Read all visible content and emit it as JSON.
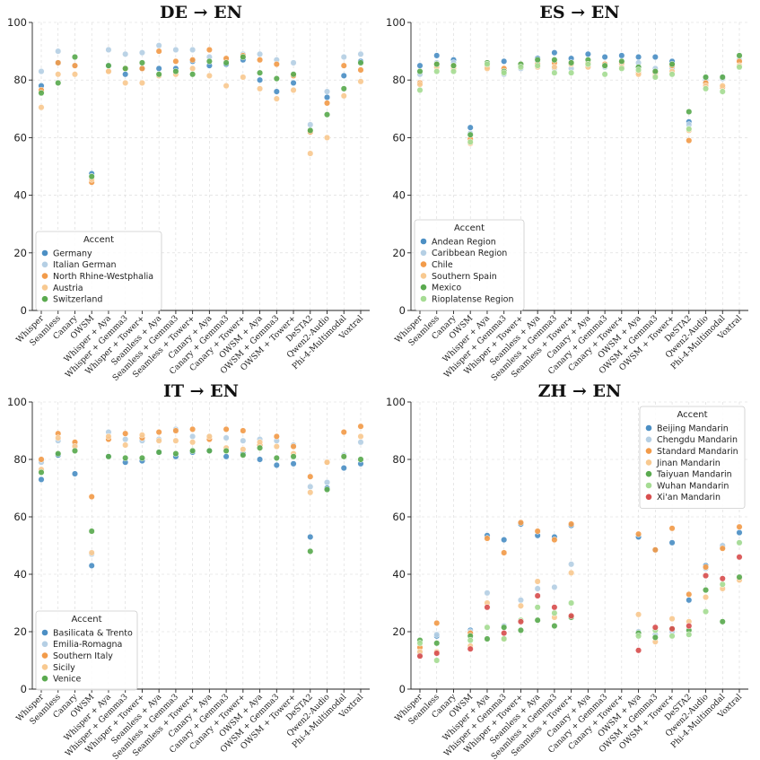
{
  "colors": {
    "c0": "#4c8fc4",
    "c1": "#b5cfe4",
    "c2": "#f29b4a",
    "c3": "#f8c990",
    "c4": "#5aaa4f",
    "c5": "#a6dc94",
    "c6": "#d84f4f"
  },
  "chart_data": [
    {
      "type": "scatter",
      "title": "DE → EN",
      "xlabel": "",
      "ylabel": "",
      "ylim": [
        0,
        100
      ],
      "yticks": [
        "0",
        "20",
        "40",
        "60",
        "80",
        "100"
      ],
      "grid": true,
      "categories": [
        "Whisper",
        "Seamless",
        "Canary",
        "OWSM",
        "Whisper + Aya",
        "Whisper + Gemma3",
        "Whisper + Tower+",
        "Seamless + Aya",
        "Seamless + Gemma3",
        "Seamless + Tower+",
        "Canary + Aya",
        "Canary + Gemma3",
        "Canary + Tower+",
        "OWSM + Aya",
        "OWSM + Gemma3",
        "OWSM + Tower+",
        "DeSTA2",
        "Qwen2-Audio",
        "Phi-4-Multimodal",
        "Voxtral"
      ],
      "legend_title": "Accent",
      "legend_position": "lower-left",
      "series": [
        {
          "name": "Germany",
          "color_key": "c0",
          "values": [
            78,
            86,
            85,
            47.5,
            85,
            82,
            84,
            84,
            84,
            86.5,
            85,
            85.5,
            87,
            80,
            76,
            79,
            62.5,
            74,
            81.5,
            86.5
          ]
        },
        {
          "name": "Italian German",
          "color_key": "c1",
          "values": [
            83,
            90,
            85,
            46.5,
            90.5,
            89,
            89.5,
            92,
            90.5,
            90.5,
            88,
            87,
            89,
            89,
            87,
            86,
            64.5,
            76,
            88,
            89
          ]
        },
        {
          "name": "North Rhine-Westphalia",
          "color_key": "c2",
          "values": [
            76.5,
            86,
            85,
            44.5,
            83,
            84,
            84,
            90,
            86.5,
            87,
            90.5,
            87.5,
            88.5,
            87,
            85.5,
            81.5,
            62,
            72,
            85,
            83.5
          ]
        },
        {
          "name": "Austria",
          "color_key": "c3",
          "values": [
            70.5,
            82,
            82,
            45.5,
            83,
            79,
            79,
            81.5,
            82,
            84,
            81.5,
            78,
            81,
            77,
            73.5,
            76.5,
            54.5,
            60,
            74.5,
            79.5
          ]
        },
        {
          "name": "Switzerland",
          "color_key": "c4",
          "values": [
            75.5,
            79,
            88,
            46.5,
            85,
            84,
            86,
            82,
            83,
            82,
            86.5,
            86,
            88,
            82.5,
            80.5,
            82,
            62.5,
            68,
            77,
            86
          ]
        }
      ]
    },
    {
      "type": "scatter",
      "title": "ES → EN",
      "xlabel": "",
      "ylabel": "",
      "ylim": [
        0,
        100
      ],
      "yticks": [
        "0",
        "20",
        "40",
        "60",
        "80",
        "100"
      ],
      "grid": true,
      "categories": [
        "Whisper",
        "Seamless",
        "Canary",
        "OWSM",
        "Whisper + Aya",
        "Whisper + Gemma3",
        "Whisper + Tower+",
        "Seamless + Aya",
        "Seamless + Gemma3",
        "Seamless + Tower+",
        "Canary + Aya",
        "Canary + Gemma3",
        "Canary + Tower+",
        "OWSM + Aya",
        "OWSM + Gemma3",
        "OWSM + Tower+",
        "DeSTA2",
        "Qwen2-Audio",
        "Phi-4-Multimodal",
        "Voxtral"
      ],
      "legend_title": "Accent",
      "legend_position": "lower-left",
      "series": [
        {
          "name": "Andean Region",
          "color_key": "c0",
          "values": [
            85,
            88.5,
            87,
            63.5,
            85.5,
            86.5,
            85.5,
            87.5,
            89.5,
            87.5,
            89,
            88,
            88.5,
            88,
            88,
            86.5,
            65.5,
            80.5,
            81,
            87
          ]
        },
        {
          "name": "Caribbean Region",
          "color_key": "c1",
          "values": [
            82,
            86,
            86,
            61.5,
            85.5,
            82,
            84,
            86.5,
            84,
            84,
            85,
            84.5,
            86,
            86,
            84,
            84,
            64.5,
            80,
            80.5,
            87
          ]
        },
        {
          "name": "Chile",
          "color_key": "c2",
          "values": [
            79,
            85.5,
            85,
            59.5,
            84.5,
            84,
            85.5,
            85.5,
            86,
            86,
            86,
            85.5,
            86,
            82.5,
            82.5,
            85,
            59,
            79,
            77.5,
            86.5
          ]
        },
        {
          "name": "Southern Spain",
          "color_key": "c3",
          "values": [
            78.5,
            84.5,
            84,
            58,
            84,
            83,
            85,
            84.5,
            84.5,
            85.5,
            84.5,
            85,
            84.5,
            82,
            81.5,
            83,
            62.5,
            78,
            78,
            85
          ]
        },
        {
          "name": "Mexico",
          "color_key": "c4",
          "values": [
            83,
            85.5,
            85,
            61,
            86,
            83,
            85.5,
            87,
            87,
            86,
            87,
            85,
            86.5,
            84.5,
            83,
            85.5,
            69,
            81,
            81,
            88.5
          ]
        },
        {
          "name": "Rioplatense Region",
          "color_key": "c5",
          "values": [
            76.5,
            83,
            83,
            58.5,
            85.5,
            82.5,
            84.5,
            85,
            82.5,
            82.5,
            85.5,
            82,
            84,
            83.5,
            81,
            82,
            63,
            77,
            76,
            84.5
          ]
        }
      ]
    },
    {
      "type": "scatter",
      "title": "IT → EN",
      "xlabel": "",
      "ylabel": "",
      "ylim": [
        0,
        100
      ],
      "yticks": [
        "0",
        "20",
        "40",
        "60",
        "80",
        "100"
      ],
      "grid": true,
      "categories": [
        "Whisper",
        "Seamless",
        "Canary",
        "OWSM",
        "Whisper + Aya",
        "Whisper + Gemma3",
        "Whisper + Tower+",
        "Seamless + Aya",
        "Seamless + Gemma3",
        "Seamless + Tower+",
        "Canary + Aya",
        "Canary + Gemma3",
        "Canary + Tower+",
        "OWSM + Aya",
        "OWSM + Gemma3",
        "OWSM + Tower+",
        "DeSTA2",
        "Qwen2-Audio",
        "Phi-4-Multimodal",
        "Voxtral"
      ],
      "legend_title": "Accent",
      "legend_position": "lower-left",
      "series": [
        {
          "name": "Basilicata & Trento",
          "color_key": "c0",
          "values": [
            73,
            81.5,
            75,
            43,
            81,
            79,
            79.5,
            82.5,
            81,
            82.5,
            83,
            81,
            82,
            80,
            78,
            78.5,
            53,
            70,
            77,
            78.5
          ]
        },
        {
          "name": "Emilia-Romagna",
          "color_key": "c1",
          "values": [
            79,
            86.5,
            85,
            47,
            89.5,
            87,
            86.5,
            87,
            90.5,
            88,
            88,
            87.5,
            86.5,
            87,
            86.5,
            85,
            70.5,
            72,
            81.5,
            86
          ]
        },
        {
          "name": "Southern Italy",
          "color_key": "c2",
          "values": [
            80,
            89,
            86,
            67,
            87,
            89,
            87.5,
            89.5,
            90,
            90.5,
            87,
            90.5,
            90,
            85,
            88,
            84.5,
            74,
            79,
            89.5,
            91.5
          ]
        },
        {
          "name": "Sicily",
          "color_key": "c3",
          "values": [
            76.5,
            87.5,
            84.5,
            47.5,
            88,
            85,
            88.5,
            86.5,
            86.5,
            86,
            88,
            84,
            83.5,
            86,
            84.5,
            82,
            68.5,
            79,
            81,
            88
          ]
        },
        {
          "name": "Venice",
          "color_key": "c4",
          "values": [
            75.5,
            82,
            83,
            55,
            81,
            80.5,
            80.5,
            82.5,
            82,
            83,
            83,
            83,
            81.5,
            84,
            80.5,
            81,
            48,
            69.5,
            81,
            80
          ]
        }
      ]
    },
    {
      "type": "scatter",
      "title": "ZH → EN",
      "xlabel": "",
      "ylabel": "",
      "ylim": [
        0,
        100
      ],
      "yticks": [
        "0",
        "20",
        "40",
        "60",
        "80",
        "100"
      ],
      "grid": true,
      "categories": [
        "Whisper",
        "Seamless",
        "Canary",
        "OWSM",
        "Whisper + Aya",
        "Whisper + Gemma3",
        "Whisper + Tower+",
        "Seamless + Aya",
        "Seamless + Gemma3",
        "Seamless + Tower+",
        "Canary + Aya",
        "Canary + Gemma3",
        "Canary + Tower+",
        "OWSM + Aya",
        "OWSM + Gemma3",
        "OWSM + Tower+",
        "DeSTA2",
        "Qwen2-Audio",
        "Phi-4-Multimodal",
        "Voxtral"
      ],
      "legend_title": "Accent",
      "legend_position": "upper-right",
      "series": [
        {
          "name": "Beijing Mandarin",
          "color_key": "c0",
          "values": [
            12,
            18.5,
            null,
            20.5,
            53.5,
            52,
            57.5,
            53.5,
            53,
            57,
            null,
            null,
            null,
            53,
            48.5,
            51,
            31,
            43,
            49.5,
            54.5
          ]
        },
        {
          "name": "Chengdu Mandarin",
          "color_key": "c1",
          "values": [
            12.5,
            19,
            null,
            20,
            33.5,
            22,
            31,
            35,
            35.5,
            43.5,
            null,
            null,
            null,
            20,
            19,
            20,
            19,
            42,
            50,
            51
          ]
        },
        {
          "name": "Standard Mandarin",
          "color_key": "c2",
          "values": [
            14.5,
            23,
            null,
            19.5,
            52.5,
            47.5,
            58,
            55,
            52,
            57.5,
            null,
            null,
            null,
            54,
            48.5,
            56,
            33,
            42.5,
            49,
            56.5
          ]
        },
        {
          "name": "Jinan Mandarin",
          "color_key": "c3",
          "values": [
            13,
            13,
            null,
            15,
            30,
            17.5,
            29,
            37.5,
            25,
            40.5,
            null,
            null,
            null,
            26,
            16.5,
            24.5,
            23.5,
            32,
            35,
            38
          ]
        },
        {
          "name": "Taiyuan Mandarin",
          "color_key": "c4",
          "values": [
            17,
            16,
            null,
            18.5,
            17.5,
            21.5,
            20.5,
            24,
            22,
            25,
            null,
            null,
            null,
            19.5,
            18,
            21,
            20.5,
            34.5,
            23.5,
            39
          ]
        },
        {
          "name": "Wuhan Mandarin",
          "color_key": "c5",
          "values": [
            16,
            10,
            null,
            17,
            21.5,
            17.5,
            24,
            28.5,
            26.5,
            30,
            null,
            null,
            null,
            18.5,
            20.5,
            18.5,
            19,
            27,
            36.5,
            51
          ]
        },
        {
          "name": "Xi'an Mandarin",
          "color_key": "c6",
          "values": [
            11.5,
            12.5,
            null,
            14,
            28.5,
            19.5,
            23.5,
            32.5,
            28.5,
            25.5,
            null,
            null,
            null,
            13.5,
            21.5,
            21,
            22,
            39.5,
            38.5,
            46
          ]
        }
      ]
    }
  ]
}
